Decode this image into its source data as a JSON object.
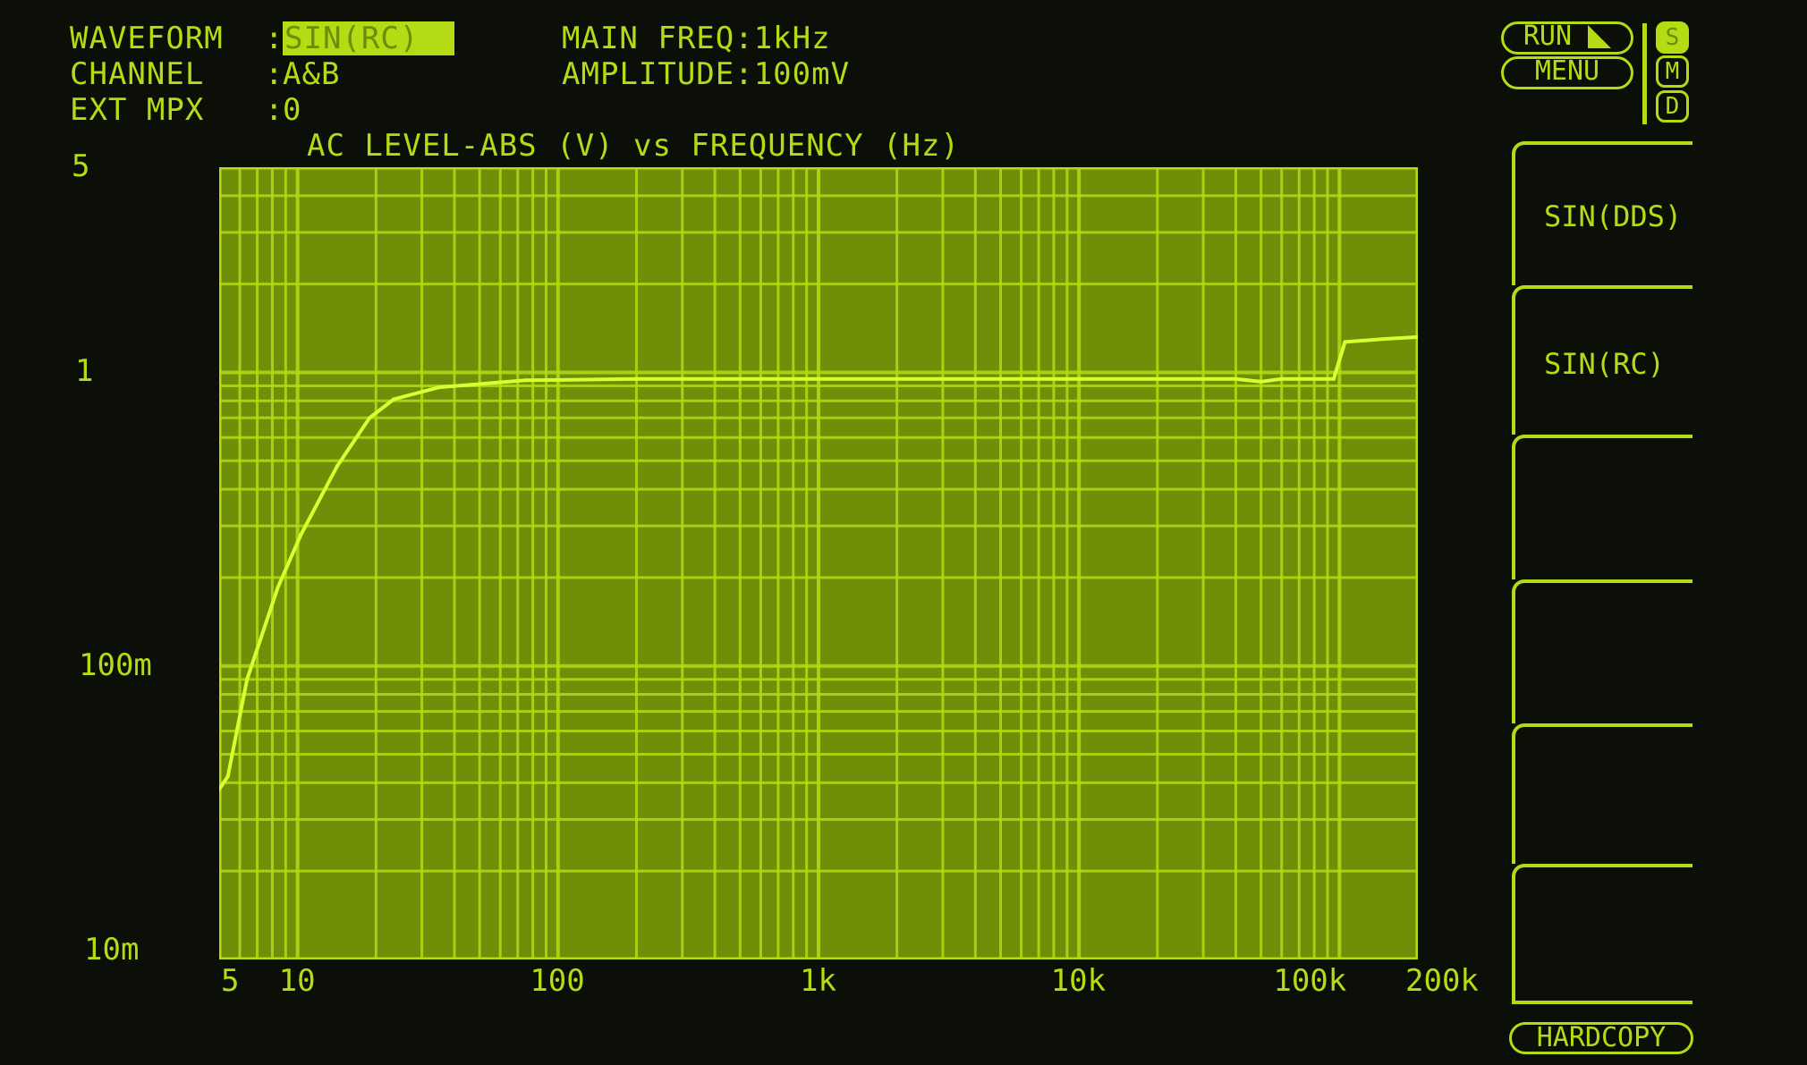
{
  "header": {
    "waveform_label": "WAVEFORM",
    "waveform_value": "SIN(RC)",
    "channel_label": "CHANNEL",
    "channel_value": "A&B",
    "ext_mpx_label": "EXT MPX",
    "ext_mpx_value": "0",
    "sep": ":",
    "main_freq": "MAIN FREQ:1kHz",
    "amplitude": "AMPLITUDE:100mV"
  },
  "controls": {
    "run_label": "RUN",
    "menu_label": "MENU",
    "mode_s": "S",
    "mode_m": "M",
    "mode_d": "D",
    "active_mode": "S",
    "hardcopy_label": "HARDCOPY"
  },
  "softkeys": [
    {
      "label": "SIN(DDS)"
    },
    {
      "label": "SIN(RC)"
    },
    {
      "label": ""
    },
    {
      "label": ""
    },
    {
      "label": ""
    },
    {
      "label": ""
    }
  ],
  "colors": {
    "phosphor": "#b4dc14",
    "plot_background": "#6f8f08",
    "screen_background": "#0c0f08"
  },
  "chart_data": {
    "type": "line",
    "title": "AC LEVEL-ABS (V) vs FREQUENCY (Hz)",
    "x_scale": "log",
    "y_scale": "log",
    "xlim": [
      5,
      200000
    ],
    "ylim": [
      0.01,
      5
    ],
    "grid": true,
    "x_ticks": [
      {
        "label": "5",
        "value": 5
      },
      {
        "label": "10",
        "value": 10
      },
      {
        "label": "100",
        "value": 100
      },
      {
        "label": "1k",
        "value": 1000
      },
      {
        "label": "10k",
        "value": 10000
      },
      {
        "label": "100k",
        "value": 100000
      },
      {
        "label": "200k",
        "value": 200000
      }
    ],
    "y_ticks": [
      {
        "label": "5",
        "value": 5
      },
      {
        "label": "1",
        "value": 1
      },
      {
        "label": "100m",
        "value": 0.1
      },
      {
        "label": "10m",
        "value": 0.01
      }
    ],
    "series": [
      {
        "x": [
          5,
          5.4,
          6.4,
          8.4,
          10.3,
          14.2,
          18.9,
          23.4,
          35,
          75,
          200,
          1000,
          10000,
          40000,
          50000,
          60000,
          95000,
          105000,
          150000,
          200000
        ],
        "y": [
          0.038,
          0.042,
          0.09,
          0.185,
          0.28,
          0.48,
          0.7,
          0.81,
          0.89,
          0.94,
          0.95,
          0.95,
          0.95,
          0.95,
          0.93,
          0.95,
          0.95,
          1.27,
          1.3,
          1.32
        ]
      }
    ]
  }
}
